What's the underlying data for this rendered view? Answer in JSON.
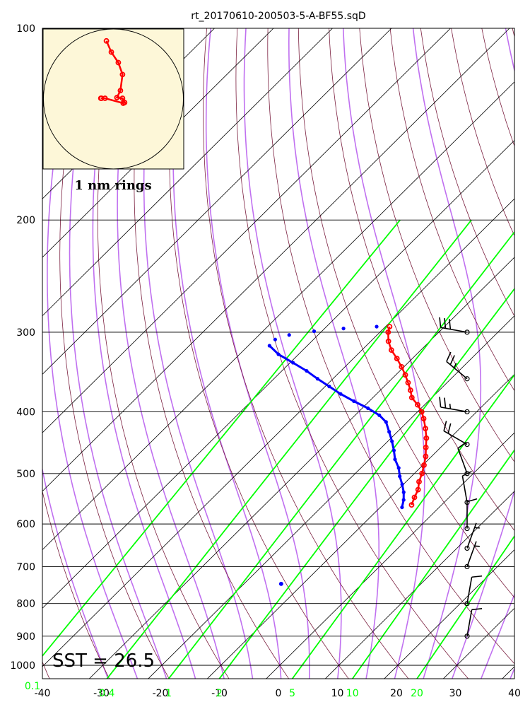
{
  "title": "rt_20170610-200503-5-A-BF55.sqD",
  "hodograph_label": "1 nm rings",
  "sst_label": "SST = 26.5",
  "colors": {
    "temperature": "#ff0000",
    "dewpoint": "#0000ff",
    "isotherm": "#000000",
    "dry_adiabat": "#7b1f3f",
    "moist_adiabat": "#c070f0",
    "mixing_ratio": "#00ff00",
    "hodograph_bg": "#fdf7d8"
  },
  "chart_data": {
    "type": "skew-t",
    "xlabel": "",
    "ylabel": "",
    "xlim": [
      -40,
      40
    ],
    "ylim": [
      1050,
      100
    ],
    "y_scale": "log",
    "x_ticks": [
      "-40",
      "-30",
      "-20",
      "-10",
      "0",
      "10",
      "20",
      "30",
      "40"
    ],
    "y_ticks": [
      "100",
      "200",
      "300",
      "400",
      "500",
      "600",
      "700",
      "800",
      "900",
      "1000"
    ],
    "mixing_ratio_labels": [
      "0.1",
      "0.4",
      "1",
      "2",
      "5",
      "10",
      "20"
    ],
    "temperature_profile": {
      "pressure": [
        560,
        545,
        530,
        515,
        500,
        485,
        470,
        455,
        440,
        425,
        410,
        400,
        390,
        380,
        370,
        360,
        350,
        340,
        330,
        320,
        310,
        300,
        294
      ],
      "temperature": [
        -5.1,
        -5.9,
        -6.6,
        -7.8,
        -8.7,
        -9.8,
        -11.0,
        -12.5,
        -14.0,
        -15.8,
        -17.8,
        -19.3,
        -21.2,
        -23.4,
        -24.9,
        -26.6,
        -28.4,
        -30.4,
        -32.6,
        -35.0,
        -37.0,
        -38.6,
        -39.3
      ]
    },
    "dewpoint_profile": {
      "pressure": [
        565,
        550,
        535,
        520,
        505,
        490,
        475,
        460,
        445,
        430,
        415,
        405,
        395,
        385,
        375,
        365,
        355,
        345,
        335,
        325,
        315,
        308,
        303,
        299,
        296,
        294
      ],
      "dewpoint": [
        -6.3,
        -7.3,
        -8.6,
        -10.2,
        -12.0,
        -13.6,
        -15.7,
        -17.4,
        -19.3,
        -21.4,
        -23.6,
        -25.9,
        -29.0,
        -32.6,
        -36.1,
        -39.3,
        -42.6,
        -45.8,
        -49.5,
        -53.4,
        -56.4,
        -56.5,
        -54.9,
        -51.3,
        -46.8,
        -41.5
      ]
    },
    "dewpoint_isolated": {
      "pressure": 745,
      "dewpoint": -13.7
    },
    "wind_barbs": {
      "pressure": [
        300,
        355,
        400,
        450,
        500,
        555,
        610,
        655,
        700,
        800,
        900
      ],
      "speed_kt": [
        30,
        25,
        25,
        20,
        10,
        10,
        10,
        5,
        5,
        10,
        10
      ],
      "direction_deg": [
        280,
        310,
        280,
        300,
        340,
        350,
        360,
        20,
        20,
        10,
        10
      ]
    },
    "hodograph": {
      "label": "1 nm rings",
      "points": [
        [
          -0.1,
          0.83
        ],
        [
          -0.03,
          0.67
        ],
        [
          0.07,
          0.52
        ],
        [
          0.13,
          0.35
        ],
        [
          0.1,
          0.12
        ],
        [
          0.05,
          0.02
        ],
        [
          0.13,
          0.01
        ],
        [
          0.16,
          -0.05
        ],
        [
          0.14,
          -0.06
        ],
        [
          -0.12,
          0.01
        ],
        [
          -0.17,
          0.01
        ],
        [
          -0.18,
          0.01
        ]
      ]
    }
  }
}
